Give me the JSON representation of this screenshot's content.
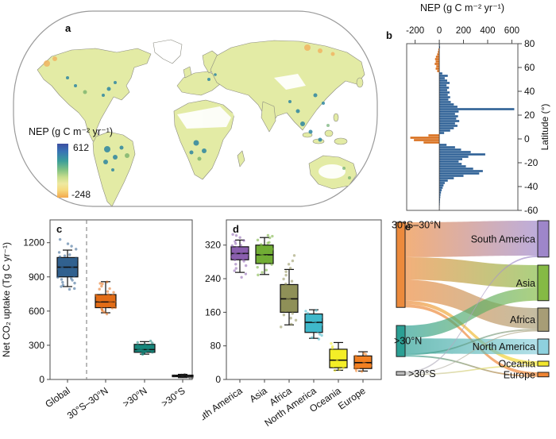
{
  "figure": {
    "panel_labels": {
      "a": "a",
      "b": "b",
      "c": "c",
      "d": "d",
      "e": "e"
    }
  },
  "map_legend": {
    "title": "NEP (g C m⁻² yr⁻¹)",
    "max": "612",
    "min": "-248"
  },
  "chart_data": [
    {
      "id": "b-latitudinal-nep-profile",
      "type": "bar",
      "orientation": "horizontal",
      "title": "NEP (g C m⁻² yr⁻¹)",
      "xticks": [
        -200,
        0,
        200,
        400,
        600
      ],
      "xlim": [
        -270,
        650
      ],
      "ylabel": "Latitude (°)",
      "yticks": [
        80,
        60,
        40,
        20,
        0,
        -20,
        -40,
        -60
      ],
      "ylim": [
        -60,
        80
      ],
      "pos_color": "#2e6096",
      "neg_color": "#d96f1e",
      "lats": [
        79,
        77,
        75,
        73,
        71,
        69,
        67,
        65,
        63,
        61,
        59,
        57,
        55,
        53,
        51,
        49,
        47,
        45,
        43,
        41,
        39,
        37,
        35,
        33,
        31,
        29,
        27,
        25,
        23,
        21,
        19,
        17,
        15,
        13,
        11,
        9,
        7,
        5,
        3,
        1,
        -1,
        -3,
        -5,
        -7,
        -9,
        -11,
        -13,
        -15,
        -17,
        -19,
        -21,
        -23,
        -25,
        -27,
        -29,
        -31,
        -33,
        -35,
        -37,
        -39,
        -41,
        -43,
        -45,
        -47,
        -49,
        -51,
        -53,
        -55,
        -57,
        -59
      ],
      "values": [
        4,
        6,
        -8,
        -12,
        -18,
        -28,
        -35,
        -30,
        -38,
        -25,
        -30,
        -18,
        25,
        70,
        45,
        65,
        85,
        60,
        80,
        65,
        85,
        70,
        90,
        75,
        95,
        120,
        150,
        620,
        160,
        130,
        155,
        140,
        165,
        130,
        150,
        120,
        90,
        40,
        -90,
        -240,
        -210,
        -130,
        60,
        130,
        180,
        260,
        380,
        240,
        190,
        160,
        185,
        220,
        280,
        360,
        330,
        200,
        120,
        70,
        45,
        35,
        28,
        20,
        14,
        10,
        8,
        6,
        5,
        4,
        3,
        2
      ]
    },
    {
      "id": "c-net-co2-uptake-by-latitude-band",
      "type": "box",
      "ylabel": "Net CO₂ uptake (Tg C yr⁻¹)",
      "yticks": [
        0,
        300,
        600,
        900,
        1200
      ],
      "ylim": [
        0,
        1400
      ],
      "categories": [
        "Global",
        "30°S–30°N",
        ">30°N",
        ">30°S"
      ],
      "colors": [
        "#31618f",
        "#e36d17",
        "#17877c",
        "#222222"
      ],
      "divider_after_first": true,
      "boxes": [
        {
          "whislo": 815,
          "q1": 900,
          "med": 985,
          "q3": 1070,
          "whishi": 1135,
          "points": [
            790,
            800,
            815,
            830,
            845,
            858,
            868,
            878,
            888,
            896,
            904,
            912,
            918,
            925,
            932,
            940,
            948,
            955,
            962,
            970,
            978,
            985,
            992,
            1000,
            1008,
            1016,
            1025,
            1035,
            1046,
            1058,
            1070,
            1085,
            1100,
            1118,
            1140,
            1165,
            1195,
            1235
          ]
        },
        {
          "whislo": 585,
          "q1": 630,
          "med": 680,
          "q3": 745,
          "whishi": 858,
          "points": [
            580,
            592,
            604,
            615,
            622,
            630,
            636,
            642,
            648,
            654,
            660,
            666,
            672,
            678,
            684,
            690,
            696,
            702,
            710,
            718,
            726,
            734,
            742,
            750,
            760,
            772,
            786,
            800,
            815,
            832,
            850,
            862,
            700,
            640
          ]
        },
        {
          "whislo": 222,
          "q1": 238,
          "med": 262,
          "q3": 308,
          "whishi": 332,
          "points": [
            220,
            226,
            231,
            236,
            240,
            245,
            250,
            254,
            258,
            262,
            266,
            270,
            275,
            281,
            288,
            295,
            303,
            311,
            319,
            327,
            333,
            264
          ]
        },
        {
          "whislo": 16,
          "q1": 24,
          "med": 30,
          "q3": 38,
          "whishi": 45,
          "points": [
            17,
            21,
            24,
            27,
            29,
            31,
            33,
            36,
            40,
            44
          ]
        }
      ]
    },
    {
      "id": "d-net-co2-uptake-by-continent",
      "type": "box",
      "yticks": [
        0,
        80,
        160,
        240,
        320
      ],
      "ylim": [
        0,
        380
      ],
      "categories": [
        "South America",
        "Asia",
        "Africa",
        "North America",
        "Oceania",
        "Europe"
      ],
      "colors": [
        "#8a5fae",
        "#71ad35",
        "#8f9058",
        "#3fb8cb",
        "#f4ee27",
        "#f28022"
      ],
      "divider_after_first": false,
      "boxes": [
        {
          "whislo": 255,
          "q1": 285,
          "med": 300,
          "q3": 316,
          "whishi": 332,
          "points": [
            243,
            252,
            259,
            265,
            271,
            276,
            281,
            285,
            289,
            292,
            295,
            298,
            300,
            302,
            305,
            308,
            311,
            314,
            317,
            320,
            324,
            328,
            332,
            337,
            342,
            346,
            287,
            303,
            296,
            310
          ]
        },
        {
          "whislo": 250,
          "q1": 276,
          "med": 297,
          "q3": 320,
          "whishi": 338,
          "points": [
            247,
            255,
            262,
            268,
            273,
            278,
            283,
            287,
            291,
            295,
            298,
            301,
            304,
            308,
            312,
            316,
            320,
            324,
            328,
            332,
            336,
            340,
            344,
            300,
            285,
            310,
            295,
            319,
            276,
            306
          ]
        },
        {
          "whislo": 130,
          "q1": 160,
          "med": 192,
          "q3": 226,
          "whishi": 262,
          "points": [
            126,
            133,
            140,
            146,
            152,
            158,
            163,
            168,
            173,
            178,
            183,
            188,
            192,
            196,
            201,
            206,
            211,
            216,
            221,
            227,
            233,
            240,
            247,
            255,
            264,
            274,
            284,
            295,
            185,
            195,
            175,
            205
          ]
        },
        {
          "whislo": 98,
          "q1": 112,
          "med": 136,
          "q3": 156,
          "whishi": 166,
          "points": [
            95,
            100,
            105,
            109,
            113,
            117,
            121,
            125,
            129,
            133,
            137,
            141,
            145,
            149,
            153,
            157,
            161,
            165,
            132,
            140,
            122,
            148
          ]
        },
        {
          "whislo": 22,
          "q1": 28,
          "med": 46,
          "q3": 72,
          "whishi": 88,
          "points": [
            21,
            25,
            28,
            32,
            36,
            40,
            44,
            49,
            54,
            60,
            66,
            73,
            80,
            87
          ]
        },
        {
          "whislo": 20,
          "q1": 26,
          "med": 40,
          "q3": 56,
          "whishi": 66,
          "points": [
            19,
            22,
            25,
            28,
            31,
            34,
            38,
            42,
            46,
            50,
            55,
            60,
            64,
            30
          ]
        }
      ]
    },
    {
      "id": "e-uptake-flow-latband-to-continent",
      "type": "sankey",
      "sources": [
        {
          "label": "30°S–30°N",
          "color": "#ec8a3c"
        },
        {
          "label": ">30°N",
          "color": "#2b9f94"
        },
        {
          "label": ">30°S",
          "color": "#bdbdbd"
        }
      ],
      "targets": [
        {
          "label": "South America",
          "color": "#9e86ca"
        },
        {
          "label": "Asia",
          "color": "#85ba45"
        },
        {
          "label": "Africa",
          "color": "#a79d76"
        },
        {
          "label": "North America",
          "color": "#8ed1de"
        },
        {
          "label": "Oceania",
          "color": "#f2e72e"
        },
        {
          "label": "Europe",
          "color": "#ef8432"
        }
      ],
      "flows": [
        {
          "source": 0,
          "target": 0,
          "value": 285
        },
        {
          "source": 0,
          "target": 1,
          "value": 185
        },
        {
          "source": 0,
          "target": 2,
          "value": 170
        },
        {
          "source": 0,
          "target": 4,
          "value": 30
        },
        {
          "source": 0,
          "target": 5,
          "value": 25
        },
        {
          "source": 1,
          "target": 1,
          "value": 105
        },
        {
          "source": 1,
          "target": 3,
          "value": 125
        },
        {
          "source": 1,
          "target": 2,
          "value": 12
        },
        {
          "source": 1,
          "target": 5,
          "value": 12
        },
        {
          "source": 2,
          "target": 0,
          "value": 12
        },
        {
          "source": 2,
          "target": 2,
          "value": 8
        },
        {
          "source": 2,
          "target": 4,
          "value": 10
        }
      ]
    }
  ]
}
